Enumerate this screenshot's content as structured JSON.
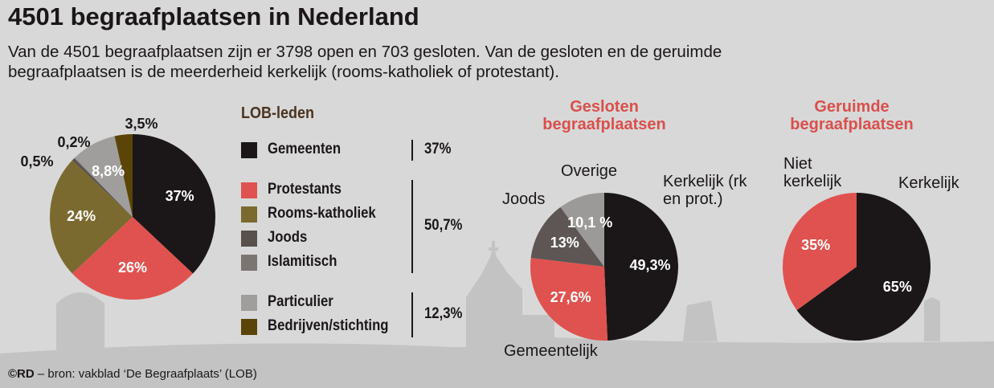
{
  "header": {
    "title": "4501 begraafplaatsen in Nederland",
    "subtitle": "Van de 4501 begraafplaatsen zijn er 3798 open en 703 gesloten. Van de gesloten en de geruimde begraafplaatsen is de meerderheid kerkelijk (rooms-katholiek of protestant)."
  },
  "chart_data": [
    {
      "type": "pie",
      "legend_title": "LOB-leden",
      "categories": [
        "Gemeenten",
        "Protestants",
        "Rooms-katholiek",
        "Joods",
        "Islamitisch",
        "Particulier",
        "Bedrijven/stichting"
      ],
      "values": [
        37,
        26,
        24,
        0.5,
        0.2,
        8.8,
        3.5
      ],
      "value_labels": [
        "37%",
        "26%",
        "24%",
        "0,5%",
        "0,2%",
        "8,8%",
        "3,5%"
      ],
      "colors": [
        "#1b1718",
        "#e0524f",
        "#7b6a2f",
        "#58504c",
        "#7b7572",
        "#a09e9c",
        "#5b4407"
      ],
      "legend_groups": [
        {
          "value": 37,
          "label": "37%"
        },
        {
          "value": 50.7,
          "label": "50,7%"
        },
        {
          "value": 12.3,
          "label": "12,3%"
        }
      ]
    },
    {
      "type": "pie",
      "title": "Gesloten begraafplaatsen",
      "categories": [
        "Kerkelijk (rk en prot.)",
        "Gemeentelijk",
        "Joods",
        "Overige"
      ],
      "values": [
        49.3,
        27.6,
        13,
        10.1
      ],
      "value_labels": [
        "49,3%",
        "27,6%",
        "13%",
        "10,1 %"
      ],
      "colors": [
        "#1b1718",
        "#e0524f",
        "#5d5654",
        "#9c9a98"
      ]
    },
    {
      "type": "pie",
      "title": "Geruimde begraafplaatsen",
      "categories": [
        "Kerkelijk",
        "Niet kerkelijk"
      ],
      "values": [
        65,
        35
      ],
      "value_labels": [
        "65%",
        "35%"
      ],
      "colors": [
        "#1b1718",
        "#e0524f"
      ]
    }
  ],
  "footer": {
    "credit": "©RD",
    "source": "– bron: vakblad ‘De Begraafplaats’ (LOB)"
  }
}
